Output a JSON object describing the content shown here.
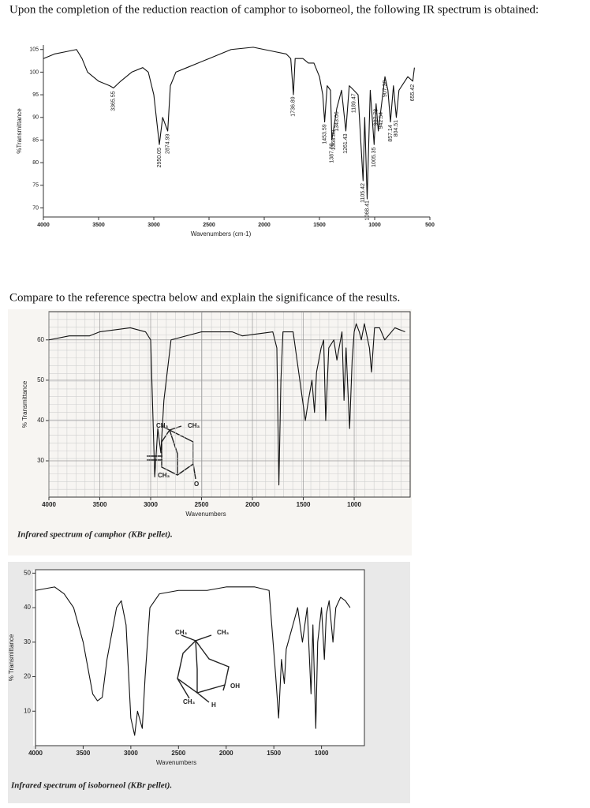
{
  "question": "Upon the completion of the reduction reaction of camphor to isoborneol, the following IR spectrum is obtained:",
  "prompt": "Compare to the reference spectra below and explain the significance of the results.",
  "chart_data": [
    {
      "type": "line",
      "x_label": "Wavenumbers (cm-1)",
      "y_label": "%Transmittance",
      "xlim": [
        4000,
        500
      ],
      "ylim": [
        68,
        106
      ],
      "xticks": [
        4000,
        3500,
        3000,
        2500,
        2000,
        1500,
        1000,
        500
      ],
      "yticks": [
        70,
        75,
        80,
        85,
        90,
        95,
        100,
        105
      ],
      "grid": false,
      "color": "#111111",
      "x": [
        4000,
        3900,
        3800,
        3700,
        3650,
        3600,
        3500,
        3400,
        3365,
        3300,
        3200,
        3100,
        3050,
        3000,
        2950,
        2920,
        2874,
        2850,
        2800,
        2700,
        2500,
        2300,
        2100,
        2000,
        1900,
        1800,
        1760,
        1736,
        1720,
        1650,
        1600,
        1550,
        1500,
        1470,
        1453,
        1430,
        1400,
        1388,
        1368,
        1343,
        1300,
        1261,
        1230,
        1189,
        1150,
        1105,
        1090,
        1068,
        1040,
        1005,
        987,
        967,
        942,
        907,
        880,
        857,
        830,
        804,
        780,
        700,
        655,
        640
      ],
      "values": [
        103,
        104,
        104.5,
        105,
        103,
        100,
        98,
        97,
        96.5,
        98,
        100,
        101,
        100,
        95,
        84,
        90,
        87,
        97,
        100,
        101,
        103,
        105,
        105.5,
        105,
        104.5,
        104,
        103,
        95,
        103,
        103,
        102,
        102,
        99,
        95,
        89,
        97,
        96,
        85,
        88,
        92,
        96,
        87,
        97,
        96,
        95,
        76,
        90,
        72,
        96,
        84,
        93,
        87,
        92,
        99,
        96,
        89,
        97,
        90,
        96,
        99,
        98,
        101
      ],
      "peak_labels": [
        {
          "value": 3365.55,
          "label": "3365.55"
        },
        {
          "value": 2950.05,
          "label": "2950.05"
        },
        {
          "value": 2874.99,
          "label": "2874.99"
        },
        {
          "value": 1736.89,
          "label": "1736.89"
        },
        {
          "value": 1453.59,
          "label": "1453.59"
        },
        {
          "value": 1387.88,
          "label": "1387.88"
        },
        {
          "value": 1368.8,
          "label": "1368.80"
        },
        {
          "value": 1343.06,
          "label": "1343.06"
        },
        {
          "value": 1261.43,
          "label": "1261.43"
        },
        {
          "value": 1189.47,
          "label": "1189.47"
        },
        {
          "value": 1105.42,
          "label": "1105.42"
        },
        {
          "value": 1068.41,
          "label": "1068.41"
        },
        {
          "value": 1005.35,
          "label": "1005.35"
        },
        {
          "value": 987.78,
          "label": "987.78"
        },
        {
          "value": 942.54,
          "label": "942.54"
        },
        {
          "value": 907.38,
          "label": "907.38"
        },
        {
          "value": 857.14,
          "label": "857.14"
        },
        {
          "value": 804.51,
          "label": "804.51"
        },
        {
          "value": 655.42,
          "label": "655.42"
        }
      ]
    },
    {
      "type": "line",
      "x_label": "Wavenumbers",
      "y_label": "% Transmittance",
      "caption": "Infrared spectrum of camphor (KBr pellet).",
      "xlim": [
        4000,
        450
      ],
      "ylim": [
        21,
        67
      ],
      "xticks": [
        4000,
        3500,
        3000,
        2500,
        2000,
        1500,
        1000
      ],
      "yticks": [
        30,
        40,
        50,
        60
      ],
      "grid": true,
      "color": "#111111",
      "structure_labels": [
        "CH₃",
        "CH₃",
        "CH₃",
        "O"
      ],
      "x": [
        4000,
        3800,
        3600,
        3500,
        3200,
        3050,
        3000,
        2960,
        2930,
        2900,
        2870,
        2800,
        2500,
        2200,
        2100,
        1800,
        1760,
        1740,
        1720,
        1700,
        1600,
        1480,
        1450,
        1415,
        1390,
        1370,
        1325,
        1300,
        1280,
        1250,
        1200,
        1170,
        1120,
        1100,
        1080,
        1045,
        1020,
        1000,
        980,
        950,
        930,
        900,
        850,
        830,
        800,
        750,
        700,
        600,
        500
      ],
      "values": [
        60,
        61,
        61,
        62,
        63,
        62,
        60,
        26,
        38,
        32,
        45,
        60,
        62,
        62,
        61,
        62,
        58,
        24,
        50,
        62,
        62,
        40,
        45,
        50,
        42,
        52,
        58,
        60,
        40,
        58,
        60,
        55,
        62,
        45,
        58,
        38,
        55,
        62,
        64,
        62,
        60,
        64,
        58,
        52,
        63,
        63,
        60,
        63,
        62
      ]
    },
    {
      "type": "line",
      "x_label": "Wavenumbers",
      "y_label": "% Transmittance",
      "caption": "Infrared spectrum of isoborneol (KBr pellet).",
      "xlim": [
        4000,
        550
      ],
      "ylim": [
        0,
        51
      ],
      "xticks": [
        4000,
        3500,
        3000,
        2500,
        2000,
        1500,
        1000
      ],
      "yticks": [
        10,
        20,
        30,
        40,
        50
      ],
      "grid": false,
      "color": "#111111",
      "structure_labels": [
        "CH₃",
        "CH₃",
        "OH",
        "CH₃",
        "H"
      ],
      "x": [
        4000,
        3800,
        3700,
        3600,
        3500,
        3400,
        3350,
        3300,
        3250,
        3150,
        3100,
        3050,
        3000,
        2960,
        2930,
        2880,
        2850,
        2800,
        2700,
        2500,
        2200,
        2000,
        1800,
        1700,
        1550,
        1480,
        1450,
        1420,
        1390,
        1370,
        1300,
        1250,
        1200,
        1150,
        1110,
        1090,
        1060,
        1040,
        1000,
        970,
        950,
        920,
        880,
        850,
        800,
        750,
        700
      ],
      "values": [
        45,
        46,
        44,
        40,
        30,
        15,
        13,
        14,
        25,
        40,
        42,
        35,
        8,
        3,
        10,
        5,
        20,
        40,
        44,
        45,
        45,
        46,
        46,
        46,
        45,
        20,
        8,
        25,
        18,
        28,
        35,
        40,
        30,
        40,
        15,
        35,
        5,
        30,
        40,
        25,
        38,
        42,
        30,
        40,
        43,
        42,
        40
      ]
    }
  ]
}
